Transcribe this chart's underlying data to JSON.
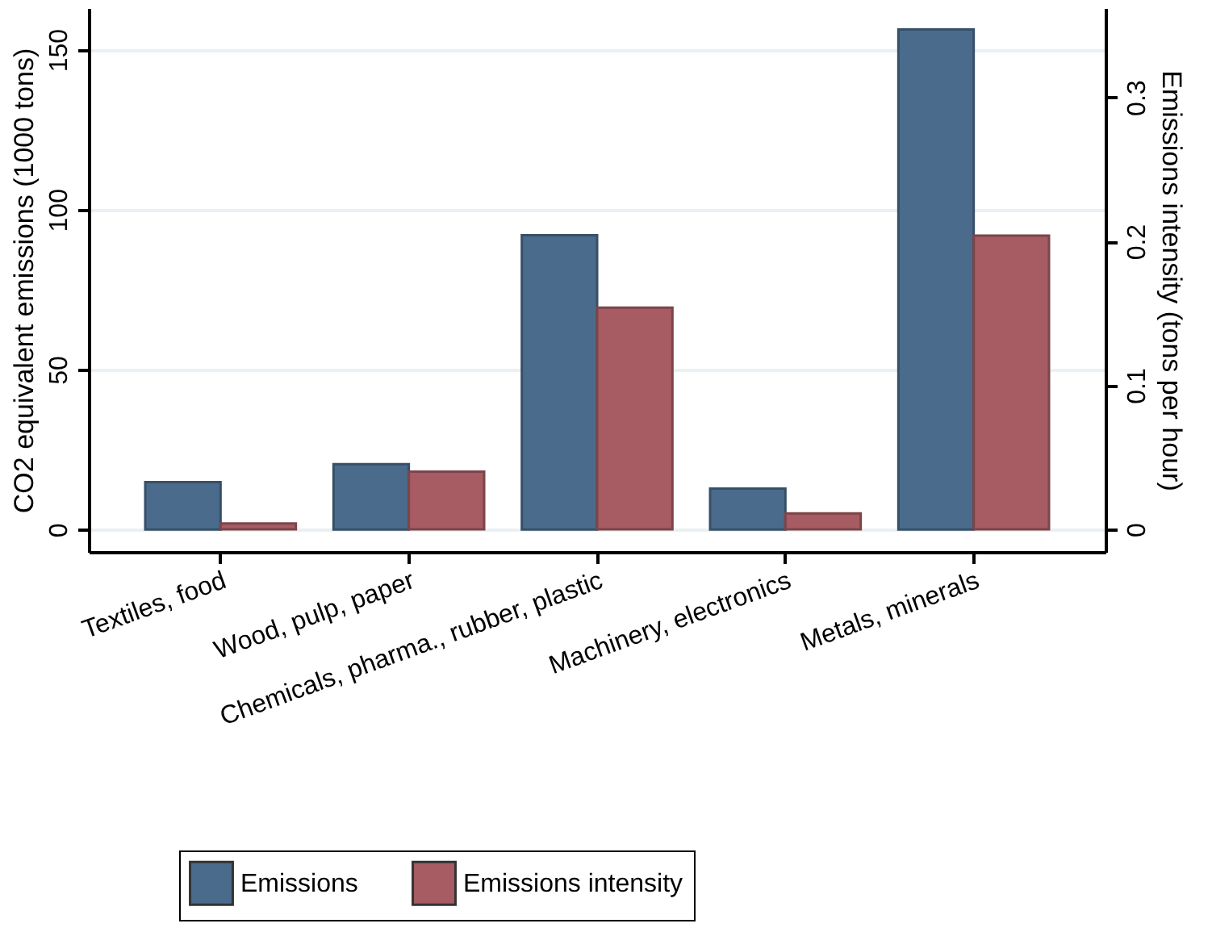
{
  "chart_data": {
    "type": "bar",
    "categories": [
      "Textiles, food",
      "Wood, pulp, paper",
      "Chemicals, pharma., rubber, plastic",
      "Machinery, electronics",
      "Metals, minerals"
    ],
    "series": [
      {
        "name": "Emissions",
        "color": "#4a6b8c",
        "values": [
          14.8,
          20.4,
          92,
          12.8,
          156.3
        ]
      },
      {
        "name": "Emissions intensity",
        "color": "#a65c62",
        "axis": "y2",
        "values": [
          0.004,
          0.04,
          0.154,
          0.011,
          0.204
        ]
      }
    ],
    "ylabel": "CO2 equivalent emissions (1000 tons)",
    "y2label": "Emissions intensity (tons per hour)",
    "ylim": [
      -7,
      163
    ],
    "yticks": [
      0,
      50,
      100,
      150
    ],
    "y2lim": [
      -0.0157,
      0.362
    ],
    "y2ticks": [
      0,
      0.1,
      0.2,
      0.3
    ],
    "grid": "y",
    "legend": "bottom"
  }
}
